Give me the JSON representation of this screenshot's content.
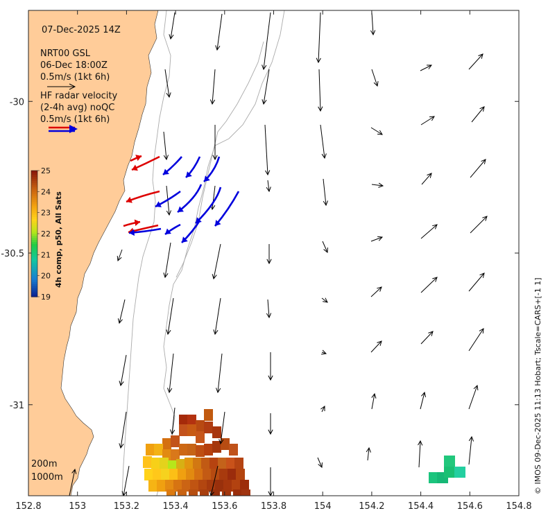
{
  "map": {
    "time_label": "07-Dec-2025 14Z",
    "model_label": "NRT00 GSL",
    "model_time": "06-Dec 18:00Z",
    "model_scale": "0.5m/s (1kt 6h)",
    "radar_label_1": "HF radar velocity",
    "radar_label_2": "(2-4h avg) noQC",
    "radar_scale": "0.5m/s (1kt 6h)",
    "depth_200": "200m",
    "depth_1000": "1000m",
    "credit": "© IMOS 09-Dec-2025 11:13 Hobart; Tscale=CARS+[-1 1]",
    "colorbar": {
      "label": "4h comp, p50, All Sats",
      "ticks": [
        "25",
        "24",
        "23",
        "22",
        "21",
        "20",
        "19"
      ],
      "vmin": 19,
      "vmax": 25
    },
    "x_axis": {
      "range": [
        152.8,
        154.8
      ],
      "ticks": [
        152.8,
        153,
        153.2,
        153.4,
        153.6,
        153.8,
        154,
        154.2,
        154.4,
        154.6,
        154.8
      ],
      "tick_labels": [
        "152.8",
        "153",
        "153.2",
        "153.4",
        "153.6",
        "153.8",
        "154",
        "154.2",
        "154.4",
        "154.6",
        "154.8"
      ]
    },
    "y_axis": {
      "range": [
        -31.3,
        -29.7
      ],
      "ticks": [
        -30,
        -30.5,
        -31
      ],
      "tick_labels": [
        "-30",
        "-30.5",
        "-31"
      ]
    },
    "colors": {
      "land": "#ffcc99",
      "model_arrow": "#000000",
      "radar_east": "#0000dd",
      "radar_west": "#dd0000",
      "isobath": "#aaaaaa"
    }
  }
}
